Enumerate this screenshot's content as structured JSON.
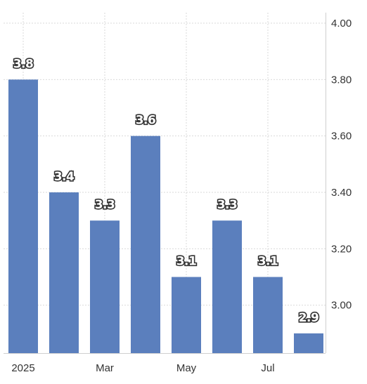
{
  "chart_data": {
    "type": "bar",
    "categories": [
      "2025-01",
      "2025-02",
      "2025-03",
      "2025-04",
      "2025-05",
      "2025-06",
      "2025-07",
      "2025-08"
    ],
    "values": [
      3.8,
      3.4,
      3.3,
      3.6,
      3.1,
      3.3,
      3.1,
      2.9
    ],
    "data_labels": [
      "3.8",
      "3.4",
      "3.3",
      "3.6",
      "3.1",
      "3.3",
      "3.1",
      "2.9"
    ],
    "x_tick_labels": [
      {
        "category": "2025-01",
        "label": "2025"
      },
      {
        "category": "2025-03",
        "label": "Mar"
      },
      {
        "category": "2025-05",
        "label": "May"
      },
      {
        "category": "2025-07",
        "label": "Jul"
      }
    ],
    "y_ticks": [
      {
        "value": 3.0,
        "label": "3.00"
      },
      {
        "value": 3.2,
        "label": "3.20"
      },
      {
        "value": 3.4,
        "label": "3.40"
      },
      {
        "value": 3.6,
        "label": "3.60"
      },
      {
        "value": 3.8,
        "label": "3.80"
      },
      {
        "value": 4.0,
        "label": "4.00"
      }
    ],
    "ylim": [
      2.83,
      4.0
    ],
    "y_axis_position": "right",
    "grid": true,
    "bar_color": "#5b7fbd",
    "title": "",
    "xlabel": "",
    "ylabel": ""
  }
}
